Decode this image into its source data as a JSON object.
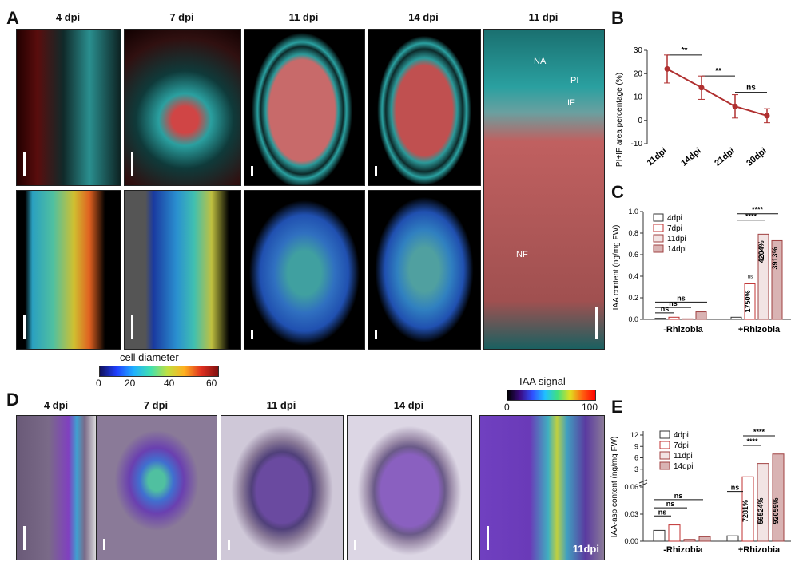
{
  "panelA": {
    "letter": "A",
    "time_labels": [
      "4 dpi",
      "7 dpi",
      "11 dpi",
      "14 dpi",
      "11 dpi"
    ],
    "annotations": [
      "NA",
      "PI",
      "IF",
      "NF"
    ],
    "colorbar": {
      "title": "cell diameter",
      "ticks": [
        "0",
        "20",
        "40",
        "60"
      ]
    }
  },
  "panelB": {
    "letter": "B",
    "chart_data": {
      "type": "line",
      "ylabel": "PI+IF area percentage (%)",
      "categories": [
        "11dpi",
        "14dpi",
        "21dpi",
        "30dpi"
      ],
      "values": [
        22,
        14,
        6,
        2
      ],
      "errors": [
        6,
        5,
        5,
        3
      ],
      "ylim": [
        -10,
        30
      ],
      "yticks": [
        "-10",
        "0",
        "10",
        "20",
        "30"
      ],
      "significance": [
        "**",
        "**",
        "ns"
      ],
      "color": "#b03030"
    }
  },
  "panelC": {
    "letter": "C",
    "chart_data": {
      "type": "bar",
      "ylabel": "IAA content (ng/mg FW)",
      "groups": [
        "-Rhizobia",
        "+Rhizobia"
      ],
      "ylim": [
        0,
        1.0
      ],
      "yticks": [
        "0.0",
        "0.2",
        "0.4",
        "0.6",
        "0.8",
        "1.0"
      ],
      "series": [
        {
          "name": "4dpi",
          "values": [
            0.01,
            0.02
          ]
        },
        {
          "name": "7dpi",
          "values": [
            0.02,
            0.33
          ]
        },
        {
          "name": "11dpi",
          "values": [
            0.005,
            0.79
          ]
        },
        {
          "name": "14dpi",
          "values": [
            0.07,
            0.73
          ]
        }
      ],
      "bar_labels": [
        "1750%",
        "4204%",
        "3913%"
      ],
      "small_label": "ns",
      "significance": [
        "ns",
        "ns",
        "ns",
        "****",
        "****"
      ]
    }
  },
  "panelD": {
    "letter": "D",
    "time_labels": [
      "4 dpi",
      "7 dpi",
      "11 dpi",
      "14 dpi"
    ],
    "inset_label": "11dpi",
    "colorbar": {
      "title": "IAA signal",
      "ticks": [
        "0",
        "100"
      ]
    }
  },
  "panelE": {
    "letter": "E",
    "chart_data": {
      "type": "bar",
      "ylabel": "IAA-asp content (ng/mg FW)",
      "groups": [
        "-Rhizobia",
        "+Rhizobia"
      ],
      "yticks_low": [
        "0.00",
        "0.03",
        "0.06"
      ],
      "yticks_high": [
        "3",
        "6",
        "9",
        "12"
      ],
      "series": [
        {
          "name": "4dpi",
          "values": [
            0.012,
            0.006
          ]
        },
        {
          "name": "7dpi",
          "values": [
            0.018,
            1.0
          ]
        },
        {
          "name": "11dpi",
          "values": [
            0.002,
            4.5
          ]
        },
        {
          "name": "14dpi",
          "values": [
            0.005,
            7.0
          ]
        }
      ],
      "bar_labels": [
        "7281%",
        "59524%",
        "92059%"
      ],
      "significance": [
        "ns",
        "ns",
        "ns",
        "ns",
        "****",
        "****"
      ]
    }
  }
}
